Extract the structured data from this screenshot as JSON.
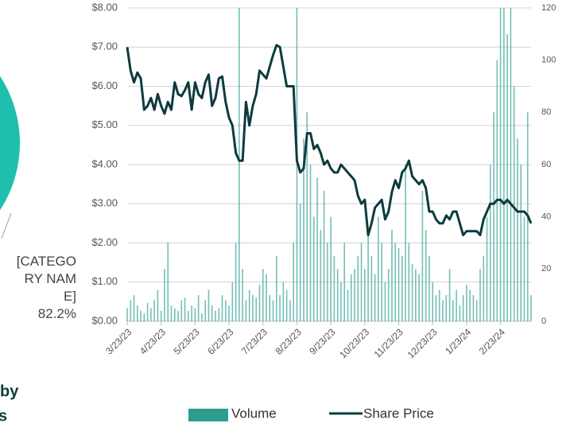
{
  "chart_data": [
    {
      "type": "pie",
      "categories": [
        "[CATEGORY NAME]"
      ],
      "values": [
        82.2
      ],
      "value_labels": [
        "82.2%"
      ],
      "color": "#1fbfae",
      "title_lines": [
        "by",
        "s"
      ]
    },
    {
      "type": "combo",
      "categories": [
        "3/23/23",
        null,
        null,
        null,
        null,
        null,
        null,
        null,
        null,
        null,
        "4/23/23",
        null,
        null,
        null,
        null,
        null,
        null,
        null,
        null,
        null,
        "5/23/23",
        null,
        null,
        null,
        null,
        null,
        null,
        null,
        null,
        null,
        "6/23/23",
        null,
        null,
        null,
        null,
        null,
        null,
        null,
        null,
        null,
        "7/23/23",
        null,
        null,
        null,
        null,
        null,
        null,
        null,
        null,
        null,
        "8/23/23",
        null,
        null,
        null,
        null,
        null,
        null,
        null,
        null,
        null,
        "9/23/23",
        null,
        null,
        null,
        null,
        null,
        null,
        null,
        null,
        null,
        "10/23/23",
        null,
        null,
        null,
        null,
        null,
        null,
        null,
        null,
        null,
        "11/23/23",
        null,
        null,
        null,
        null,
        null,
        null,
        null,
        null,
        null,
        "12/23/23",
        null,
        null,
        null,
        null,
        null,
        null,
        null,
        null,
        null,
        "1/23/24",
        null,
        null,
        null,
        null,
        null,
        null,
        null,
        null,
        null,
        "2/23/24",
        null,
        null,
        null,
        null,
        null,
        null,
        null,
        null,
        null
      ],
      "series": [
        {
          "name": "Volume",
          "type": "bar",
          "axis": "y2",
          "color": "#2a9d8f",
          "values": [
            5,
            8,
            10,
            6,
            4,
            3,
            7,
            5,
            8,
            12,
            4,
            20,
            30,
            6,
            5,
            4,
            8,
            9,
            4,
            6,
            5,
            10,
            3,
            8,
            12,
            6,
            4,
            5,
            10,
            8,
            6,
            15,
            30,
            125,
            20,
            8,
            12,
            10,
            9,
            14,
            20,
            18,
            10,
            8,
            25,
            10,
            15,
            12,
            8,
            30,
            125,
            45,
            70,
            80,
            60,
            40,
            55,
            35,
            50,
            30,
            40,
            25,
            20,
            15,
            30,
            12,
            18,
            20,
            25,
            30,
            20,
            35,
            25,
            18,
            40,
            30,
            15,
            20,
            35,
            30,
            28,
            25,
            60,
            30,
            22,
            20,
            18,
            50,
            35,
            25,
            15,
            10,
            12,
            8,
            10,
            20,
            8,
            12,
            6,
            10,
            14,
            12,
            10,
            8,
            20,
            25,
            40,
            60,
            80,
            100,
            125,
            125,
            110,
            125,
            90,
            70,
            60,
            40,
            80,
            10
          ]
        },
        {
          "name": "Share Price",
          "type": "line",
          "color": "#0d3b3e",
          "values": [
            7.0,
            6.4,
            6.1,
            6.35,
            6.2,
            5.4,
            5.5,
            5.7,
            5.4,
            5.8,
            5.5,
            5.3,
            5.6,
            5.4,
            6.1,
            5.8,
            5.75,
            5.9,
            6.1,
            5.4,
            6.1,
            5.8,
            5.7,
            6.1,
            6.3,
            5.5,
            5.7,
            6.2,
            6.25,
            5.6,
            5.2,
            5.0,
            4.3,
            4.1,
            4.1,
            5.6,
            5.0,
            5.5,
            5.8,
            6.4,
            6.3,
            6.2,
            6.5,
            6.8,
            7.05,
            7.0,
            6.5,
            6.0,
            6.0,
            6.0,
            4.1,
            3.8,
            3.9,
            4.8,
            4.8,
            4.4,
            4.5,
            4.3,
            4.0,
            4.1,
            3.9,
            3.8,
            3.8,
            4.0,
            3.9,
            3.8,
            3.7,
            3.6,
            3.2,
            3.0,
            3.1,
            2.2,
            2.5,
            2.9,
            3.0,
            3.1,
            2.6,
            2.8,
            3.3,
            3.6,
            3.4,
            3.8,
            3.9,
            4.1,
            3.7,
            3.6,
            3.5,
            3.6,
            3.4,
            2.8,
            2.8,
            2.6,
            2.5,
            2.5,
            2.7,
            2.6,
            2.8,
            2.8,
            2.5,
            2.2,
            2.3,
            2.3,
            2.3,
            2.3,
            2.2,
            2.6,
            2.8,
            3.0,
            3.0,
            3.1,
            3.1,
            3.0,
            3.1,
            3.0,
            2.9,
            2.8,
            2.8,
            2.8,
            2.7,
            2.5
          ]
        }
      ],
      "ylim": [
        0,
        8
      ],
      "yticks": [
        {
          "value": 0,
          "label": "$0.00"
        },
        {
          "value": 1,
          "label": "$1.00"
        },
        {
          "value": 2,
          "label": "$2.00"
        },
        {
          "value": 3,
          "label": "$3.00"
        },
        {
          "value": 4,
          "label": "$4.00"
        },
        {
          "value": 5,
          "label": "$5.00"
        },
        {
          "value": 6,
          "label": "$6.00"
        },
        {
          "value": 7,
          "label": "$7.00"
        },
        {
          "value": 8,
          "label": "$8.00"
        }
      ],
      "y2lim": [
        0,
        120
      ],
      "y2ticks": [
        0,
        20,
        40,
        60,
        80,
        100,
        120
      ],
      "grid": true,
      "legend": "bottom"
    }
  ]
}
